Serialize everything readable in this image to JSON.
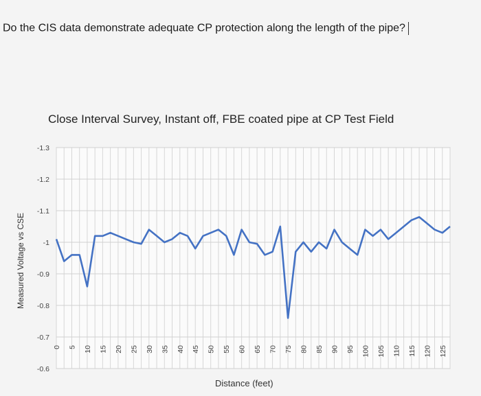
{
  "question": "Do the CIS data demonstrate adequate CP protection along the length of the pipe?",
  "chart_data": {
    "type": "line",
    "title": "Close Interval Survey, Instant off, FBE coated pipe at CP Test Field",
    "xlabel": "Distance (feet)",
    "ylabel": "Measured Voltage vs CSE",
    "yticks": [
      "-1.3",
      "-1.2",
      "-1.1",
      "-1",
      "-0.9",
      "-0.8",
      "-0.7",
      "-0.6"
    ],
    "xticks": [
      "0",
      "5",
      "10",
      "15",
      "20",
      "25",
      "30",
      "35",
      "40",
      "45",
      "50",
      "55",
      "60",
      "65",
      "70",
      "75",
      "80",
      "85",
      "90",
      "95",
      "100",
      "105",
      "110",
      "115",
      "120",
      "125"
    ],
    "ylim": [
      -1.3,
      -0.6
    ],
    "xlim": [
      0,
      127.5
    ],
    "grid": true,
    "color": "#4472c4",
    "x": [
      0,
      2.5,
      5,
      7.5,
      10,
      12.5,
      15,
      17.5,
      20,
      22.5,
      25,
      27.5,
      30,
      32.5,
      35,
      37.5,
      40,
      42.5,
      45,
      47.5,
      50,
      52.5,
      55,
      57.5,
      60,
      62.5,
      65,
      67.5,
      70,
      72.5,
      75,
      77.5,
      80,
      82.5,
      85,
      87.5,
      90,
      92.5,
      95,
      97.5,
      100,
      102.5,
      105,
      107.5,
      110,
      112.5,
      115,
      117.5,
      120,
      122.5,
      125,
      127.5
    ],
    "y": [
      -1.01,
      -0.94,
      -0.96,
      -0.96,
      -0.86,
      -1.02,
      -1.02,
      -1.03,
      -1.02,
      -1.01,
      -1.0,
      -0.995,
      -1.04,
      -1.02,
      -1.0,
      -1.01,
      -1.03,
      -1.02,
      -0.98,
      -1.02,
      -1.03,
      -1.04,
      -1.02,
      -0.96,
      -1.04,
      -1.0,
      -0.995,
      -0.96,
      -0.97,
      -1.05,
      -0.76,
      -0.97,
      -1.0,
      -0.97,
      -1.0,
      -0.98,
      -1.04,
      -1.0,
      -0.98,
      -0.96,
      -1.04,
      -1.02,
      -1.04,
      -1.01,
      -1.03,
      -1.05,
      -1.07,
      -1.08,
      -1.06,
      -1.04,
      -1.03,
      -1.05
    ]
  }
}
